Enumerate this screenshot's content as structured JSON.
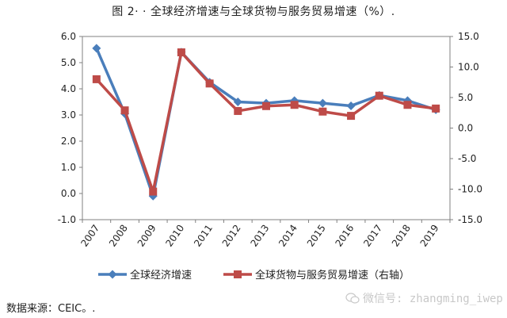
{
  "chart_data": {
    "type": "line",
    "title": "图 2· · 全球经济增速与全球货物与服务贸易增速（%）.",
    "categories": [
      "2007",
      "2008",
      "2009",
      "2010",
      "2011",
      "2012",
      "2013",
      "2014",
      "2015",
      "2016",
      "2017",
      "2018",
      "2019"
    ],
    "series": [
      {
        "name": "全球经济增速",
        "axis": "left",
        "color": "#4a7ebb",
        "marker": "diamond",
        "values": [
          5.55,
          3.05,
          -0.1,
          5.4,
          4.25,
          3.5,
          3.45,
          3.55,
          3.45,
          3.35,
          3.75,
          3.55,
          3.2
        ]
      },
      {
        "name": "全球货物与服务贸易增速（右轴）",
        "axis": "right",
        "color": "#be4b48",
        "marker": "square",
        "values": [
          8.0,
          2.9,
          -10.4,
          12.4,
          7.3,
          2.8,
          3.6,
          3.8,
          2.7,
          2.0,
          5.3,
          3.8,
          3.2
        ]
      }
    ],
    "y_left": {
      "min": -1.0,
      "max": 6.0,
      "ticks": [
        "6.0",
        "5.0",
        "4.0",
        "3.0",
        "2.0",
        "1.0",
        "0.0",
        "-1.0"
      ]
    },
    "y_right": {
      "min": -15.0,
      "max": 15.0,
      "ticks": [
        "15.0",
        "10.0",
        "5.0",
        "0.0",
        "-5.0",
        "-10.0",
        "-15.0"
      ]
    },
    "grid": false,
    "legend_position": "bottom"
  },
  "source_note": "数据来源：CEIC。.",
  "watermark_text": "微信号: zhangming_iwep",
  "watermark_icon": "wechat-icon"
}
